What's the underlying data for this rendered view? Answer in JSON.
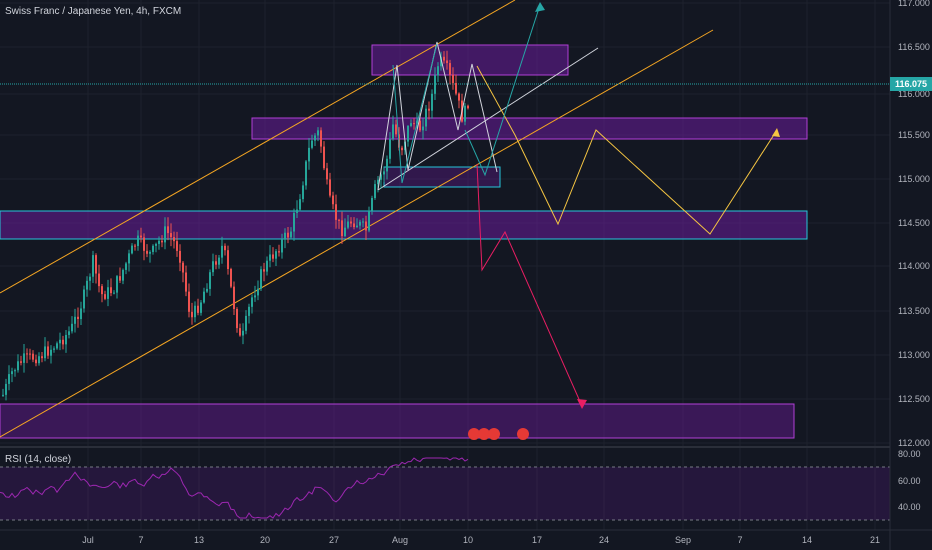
{
  "header": {
    "title": "Swiss Franc / Japanese Yen, 4h, FXCM"
  },
  "price_axis": {
    "ticks": [
      "117.000",
      "116.500",
      "116.000",
      "115.500",
      "115.000",
      "114.500",
      "114.000",
      "113.500",
      "113.000",
      "112.500",
      "112.000"
    ],
    "current_price": "116.075",
    "current_price_color": "#26a6a6"
  },
  "rsi": {
    "label": "RSI (14, close)",
    "ticks": [
      "80.00",
      "60.00",
      "40.00"
    ],
    "line_color": "#9c27b0"
  },
  "time_axis": {
    "ticks": [
      "Jul",
      "7",
      "13",
      "20",
      "27",
      "Aug",
      "10",
      "17",
      "24",
      "Sep",
      "7",
      "14",
      "21"
    ]
  },
  "colors": {
    "background": "#131722",
    "candle_up": "#26a69a",
    "candle_down": "#ef5350",
    "channel": "#f5a623",
    "zone_fill": "#6a1b9a",
    "zone_border": "#b03fd6",
    "cyan_box": "#26c6da",
    "projection_yellow": "#f5c542",
    "projection_red": "#e91e63",
    "projection_teal": "#26a6a6"
  },
  "event_icons": [
    "event-marker-icon",
    "event-marker-icon",
    "event-marker-icon",
    "event-marker-icon"
  ]
}
